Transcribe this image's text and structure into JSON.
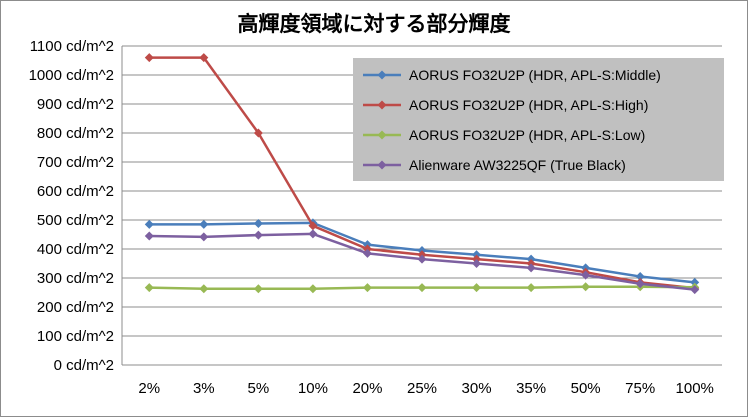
{
  "chart_data": {
    "type": "line",
    "title": "高輝度領域に対する部分輝度",
    "categories": [
      "2%",
      "3%",
      "5%",
      "10%",
      "20%",
      "25%",
      "30%",
      "35%",
      "50%",
      "75%",
      "100%"
    ],
    "y_tick_labels": [
      "0 cd/m^2",
      "100 cd/m^2",
      "200 cd/m^2",
      "300 cd/m^2",
      "400 cd/m^2",
      "500 cd/m^2",
      "600 cd/m^2",
      "700 cd/m^2",
      "800 cd/m^2",
      "900 cd/m^2",
      "1000 cd/m^2",
      "1100 cd/m^2"
    ],
    "ylim": [
      0,
      1100
    ],
    "y_step": 100,
    "grid": true,
    "legend_position": "top-right",
    "series": [
      {
        "name": "AORUS FO32U2P (HDR, APL-S:Middle)",
        "color": "#4a7ebb",
        "marker": "diamond",
        "values": [
          485,
          485,
          488,
          490,
          415,
          395,
          380,
          365,
          335,
          305,
          285
        ]
      },
      {
        "name": "AORUS FO32U2P (HDR, APL-S:High)",
        "color": "#be4b48",
        "marker": "diamond",
        "values": [
          1060,
          1060,
          800,
          480,
          400,
          380,
          365,
          350,
          320,
          285,
          265
        ]
      },
      {
        "name": "AORUS FO32U2P (HDR, APL-S:Low)",
        "color": "#98b954",
        "marker": "diamond",
        "values": [
          267,
          263,
          263,
          263,
          267,
          267,
          267,
          267,
          270,
          270,
          268
        ]
      },
      {
        "name": "Alienware AW3225QF (True Black)",
        "color": "#7d60a0",
        "marker": "diamond",
        "values": [
          445,
          442,
          448,
          452,
          385,
          365,
          350,
          335,
          310,
          280,
          260
        ]
      }
    ]
  }
}
